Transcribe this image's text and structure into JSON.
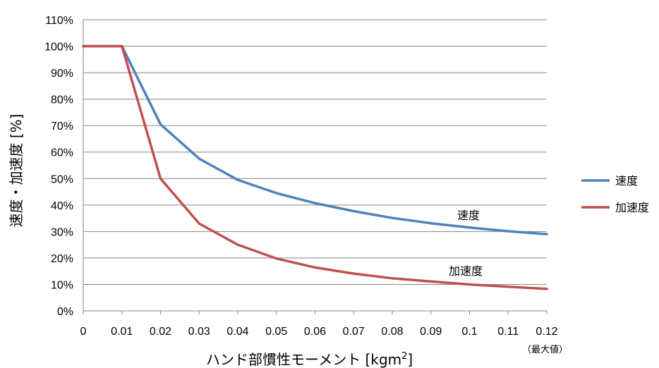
{
  "chart_data": {
    "type": "line",
    "x": [
      0,
      0.01,
      0.02,
      0.03,
      0.04,
      0.05,
      0.06,
      0.07,
      0.08,
      0.09,
      0.1,
      0.11,
      0.12
    ],
    "x_tick_labels": [
      "0",
      "0.01",
      "0.02",
      "0.03",
      "0.04",
      "0.05",
      "0.06",
      "0.07",
      "0.08",
      "0.09",
      "0.1",
      "0.11",
      "0.12"
    ],
    "y_tick_labels": [
      "0%",
      "10%",
      "20%",
      "30%",
      "40%",
      "50%",
      "60%",
      "70%",
      "80%",
      "90%",
      "100%",
      "110%"
    ],
    "xlim": [
      0,
      0.12
    ],
    "ylim": [
      0,
      110
    ],
    "ylabel": "速度・加速度 [%]",
    "xlabel_main": "ハンド部慣性モーメント [kgm",
    "xlabel_sup": "2",
    "xlabel_close": "]",
    "max_note": "（最大値）",
    "grid": true,
    "legend_position": "right",
    "series": [
      {
        "name": "速度",
        "color": "#4F81BD",
        "values": [
          100,
          100,
          70.5,
          57.5,
          49.5,
          44.5,
          40.7,
          37.7,
          35.1,
          33.1,
          31.5,
          30.1,
          29
        ]
      },
      {
        "name": "加速度",
        "color": "#C0504D",
        "values": [
          100,
          100,
          50,
          33,
          25,
          19.8,
          16.4,
          14.1,
          12.3,
          11.1,
          10,
          9.1,
          8.3
        ]
      }
    ],
    "annotations": [
      {
        "text": "速度",
        "series": 0
      },
      {
        "text": "加速度",
        "series": 1
      }
    ]
  }
}
